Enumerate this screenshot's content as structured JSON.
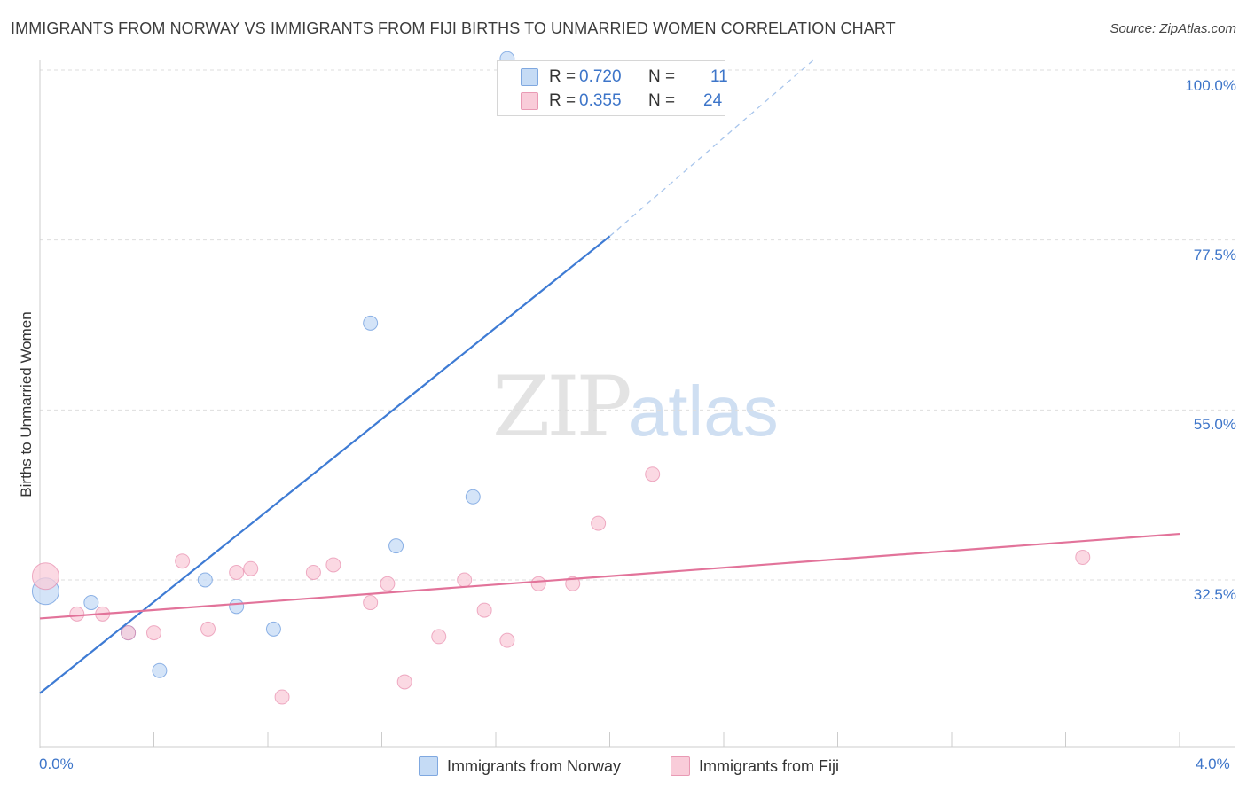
{
  "header": {
    "title": "IMMIGRANTS FROM NORWAY VS IMMIGRANTS FROM FIJI BIRTHS TO UNMARRIED WOMEN CORRELATION CHART",
    "source": "Source: ZipAtlas.com"
  },
  "watermark": {
    "zip": "ZIP",
    "atlas": "atlas"
  },
  "legend": {
    "rows": [
      {
        "r_label": "R =",
        "r_value": "0.720",
        "n_label": "N =",
        "n_value": "11",
        "color": "#a8c8f0"
      },
      {
        "r_label": "R =",
        "r_value": "0.355",
        "n_label": "N =",
        "n_value": "24",
        "color": "#f6b8cb"
      }
    ]
  },
  "bottom_legend": {
    "items": [
      {
        "label": "Immigrants from Norway",
        "color": "#a8c8f0"
      },
      {
        "label": "Immigrants from Fiji",
        "color": "#f6b8cb"
      }
    ]
  },
  "chart_data": {
    "type": "scatter",
    "title": "IMMIGRANTS FROM NORWAY VS IMMIGRANTS FROM FIJI BIRTHS TO UNMARRIED WOMEN CORRELATION CHART",
    "xlabel": "",
    "ylabel": "Births to Unmarried Women",
    "xlim": [
      0,
      4.0
    ],
    "ylim": [
      11.0,
      102.0
    ],
    "x_ticks": [
      "0.0%",
      "4.0%"
    ],
    "y_ticks": [
      {
        "value": 32.5,
        "label": "32.5%"
      },
      {
        "value": 55.0,
        "label": "55.0%"
      },
      {
        "value": 77.5,
        "label": "77.5%"
      },
      {
        "value": 100.0,
        "label": "100.0%"
      }
    ],
    "grid": true,
    "legend_position": "top-center",
    "series": [
      {
        "name": "Immigrants from Norway",
        "color": "#3e7bd4",
        "fill": "#c5dbf5",
        "points": [
          {
            "x": 0.02,
            "y": 31.0,
            "big": true
          },
          {
            "x": 0.18,
            "y": 29.5
          },
          {
            "x": 0.31,
            "y": 25.5
          },
          {
            "x": 0.42,
            "y": 20.5
          },
          {
            "x": 0.58,
            "y": 32.5
          },
          {
            "x": 0.69,
            "y": 29.0
          },
          {
            "x": 0.82,
            "y": 26.0
          },
          {
            "x": 1.16,
            "y": 66.5
          },
          {
            "x": 1.25,
            "y": 37.0
          },
          {
            "x": 1.52,
            "y": 43.5
          },
          {
            "x": 1.64,
            "y": 101.5
          }
        ],
        "trend": {
          "x0": 0.0,
          "y0": 17.5,
          "x1": 2.0,
          "y1": 78.0,
          "dash_to_x": 2.72,
          "dash_to_y": 101.5
        }
      },
      {
        "name": "Immigrants from Fiji",
        "color": "#e2739a",
        "fill": "#f9ccd9",
        "points": [
          {
            "x": 0.02,
            "y": 33.0,
            "big": true
          },
          {
            "x": 0.13,
            "y": 28.0
          },
          {
            "x": 0.22,
            "y": 28.0
          },
          {
            "x": 0.31,
            "y": 25.5
          },
          {
            "x": 0.4,
            "y": 25.5
          },
          {
            "x": 0.5,
            "y": 35.0
          },
          {
            "x": 0.59,
            "y": 26.0
          },
          {
            "x": 0.69,
            "y": 33.5
          },
          {
            "x": 0.74,
            "y": 34.0
          },
          {
            "x": 0.85,
            "y": 17.0
          },
          {
            "x": 0.96,
            "y": 33.5
          },
          {
            "x": 1.03,
            "y": 34.5
          },
          {
            "x": 1.16,
            "y": 29.5
          },
          {
            "x": 1.22,
            "y": 32.0
          },
          {
            "x": 1.28,
            "y": 19.0
          },
          {
            "x": 1.4,
            "y": 25.0
          },
          {
            "x": 1.49,
            "y": 32.5
          },
          {
            "x": 1.56,
            "y": 28.5
          },
          {
            "x": 1.64,
            "y": 24.5
          },
          {
            "x": 1.75,
            "y": 32.0
          },
          {
            "x": 1.87,
            "y": 32.0
          },
          {
            "x": 1.96,
            "y": 40.0
          },
          {
            "x": 2.15,
            "y": 46.5
          },
          {
            "x": 3.66,
            "y": 35.5
          }
        ],
        "trend": {
          "x0": 0.0,
          "y0": 27.4,
          "x1": 4.0,
          "y1": 38.6
        }
      }
    ]
  }
}
